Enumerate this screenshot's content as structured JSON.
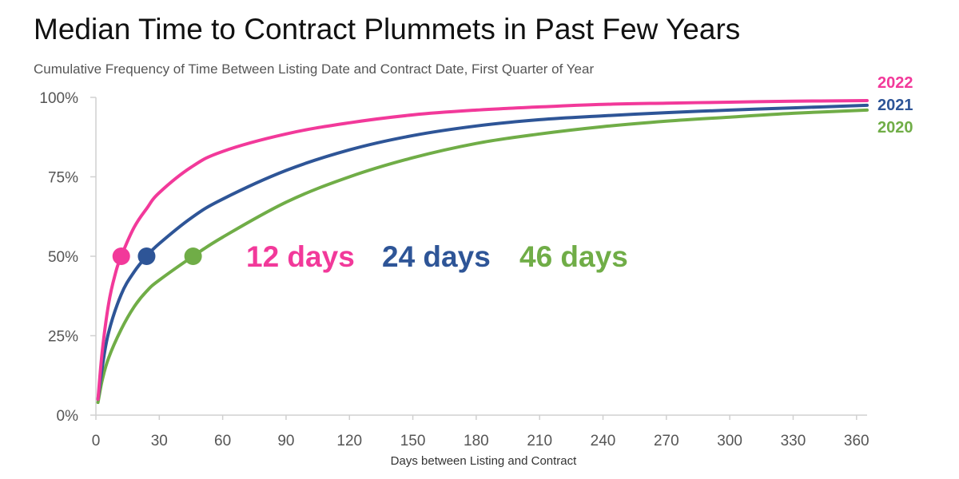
{
  "chart_data": {
    "type": "line",
    "title": "Median Time to Contract Plummets in Past Few Years",
    "subtitle": "Cumulative Frequency of Time Between Listing Date and Contract Date, First Quarter of Year",
    "xlabel": "Days between Listing and Contract",
    "ylabel": "",
    "xlim": [
      0,
      365
    ],
    "ylim": [
      0,
      100
    ],
    "x_ticks": [
      "0",
      "30",
      "60",
      "90",
      "120",
      "150",
      "180",
      "210",
      "240",
      "270",
      "300",
      "330",
      "360"
    ],
    "y_ticks": [
      "0%",
      "25%",
      "50%",
      "75%",
      "100%"
    ],
    "x_tick_values": [
      0,
      30,
      60,
      90,
      120,
      150,
      180,
      210,
      240,
      270,
      300,
      330,
      360
    ],
    "y_tick_values": [
      0,
      25,
      50,
      75,
      100
    ],
    "grid": false,
    "legend": "right end of lines",
    "series": [
      {
        "name": "2022",
        "color": "#f2399a",
        "x": [
          1,
          3,
          6,
          9,
          12,
          18,
          24,
          30,
          45,
          60,
          90,
          120,
          150,
          180,
          210,
          240,
          270,
          300,
          330,
          365
        ],
        "y": [
          5,
          20,
          35,
          44,
          50,
          59,
          65,
          70,
          78,
          83,
          88.5,
          92,
          94.5,
          96,
          97,
          97.8,
          98.2,
          98.5,
          98.8,
          99
        ]
      },
      {
        "name": "2021",
        "color": "#2e5597",
        "x": [
          1,
          3,
          6,
          12,
          18,
          24,
          30,
          45,
          60,
          90,
          120,
          150,
          180,
          210,
          240,
          270,
          300,
          330,
          365
        ],
        "y": [
          5,
          15,
          26,
          38,
          45,
          50,
          54,
          62,
          68,
          77,
          83.5,
          88,
          91,
          93,
          94.2,
          95.2,
          96,
          96.7,
          97.5
        ]
      },
      {
        "name": "2020",
        "color": "#70ad47",
        "x": [
          1,
          3,
          6,
          12,
          18,
          24,
          30,
          46,
          60,
          90,
          120,
          150,
          180,
          210,
          240,
          270,
          300,
          330,
          365
        ],
        "y": [
          4,
          11,
          18,
          27,
          34,
          39,
          42.5,
          50,
          56,
          67,
          75,
          81,
          85.5,
          88.5,
          90.8,
          92.5,
          93.8,
          95,
          96
        ]
      }
    ],
    "medians": [
      {
        "series": "2022",
        "x": 12,
        "y": 50,
        "label": "12 days",
        "color": "#f2399a"
      },
      {
        "series": "2021",
        "x": 24,
        "y": 50,
        "label": "24 days",
        "color": "#2e5597"
      },
      {
        "series": "2020",
        "x": 46,
        "y": 50,
        "label": "46 days",
        "color": "#70ad47"
      }
    ]
  }
}
